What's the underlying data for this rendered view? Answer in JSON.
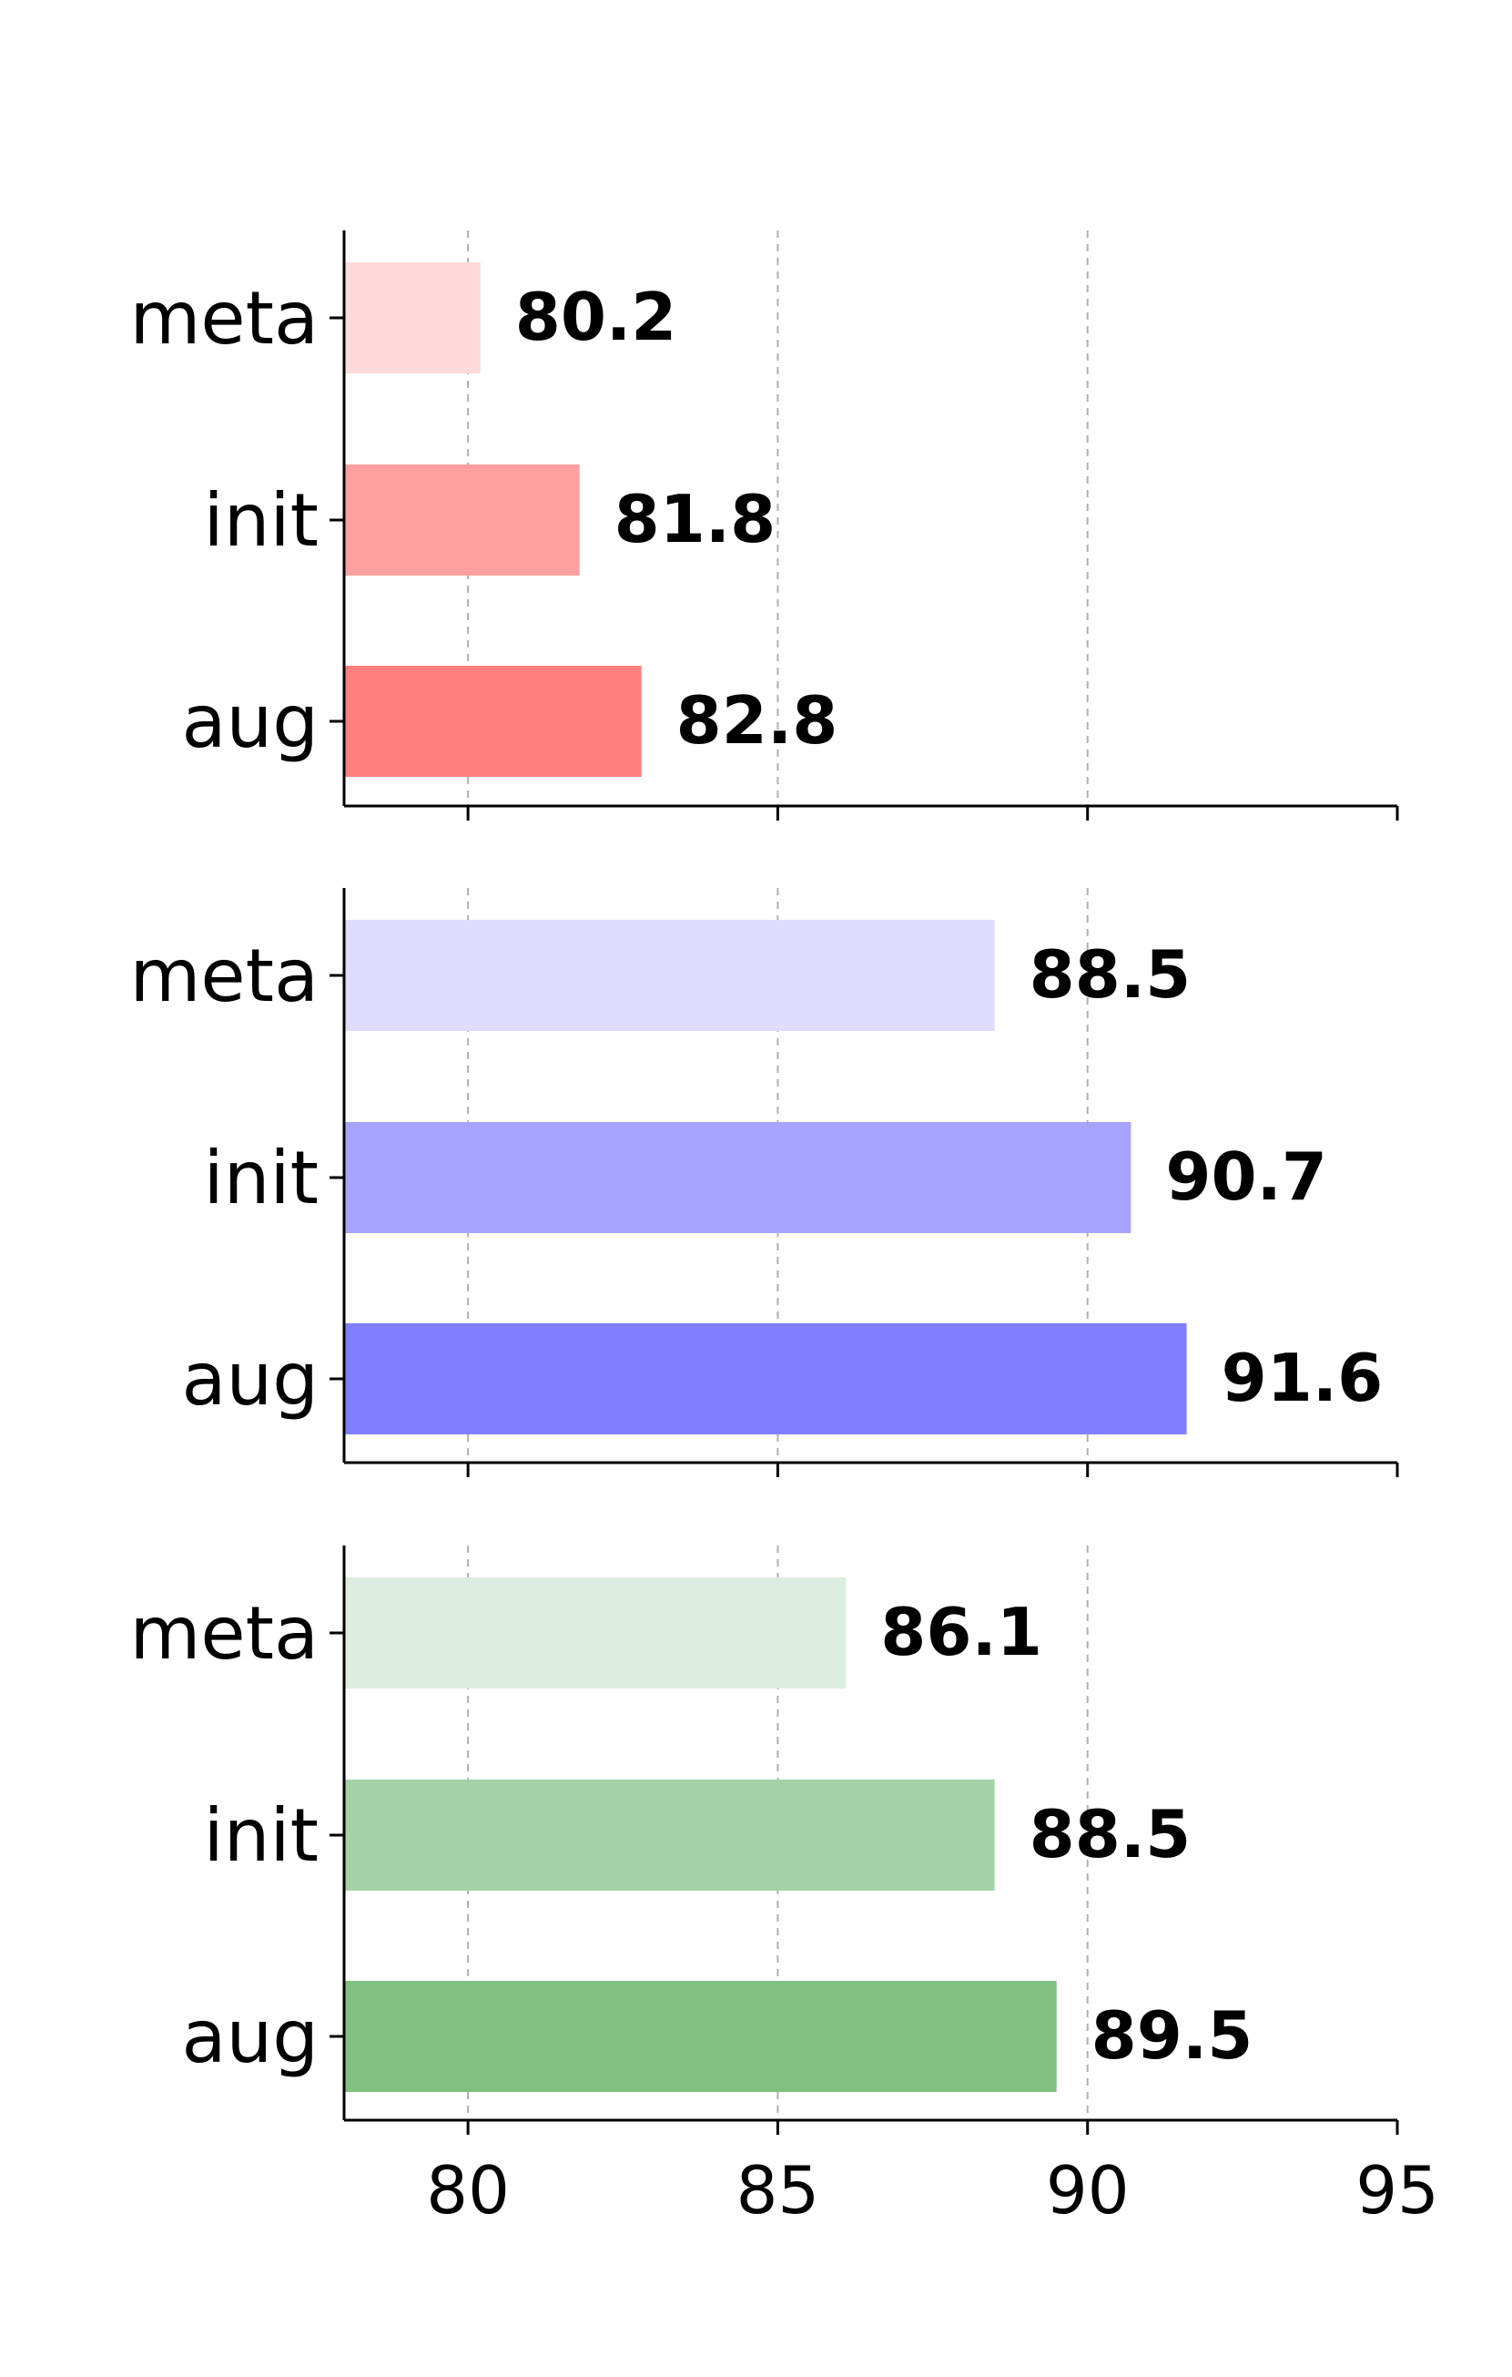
{
  "chart_data": [
    {
      "type": "bar",
      "orientation": "horizontal",
      "categories": [
        "meta",
        "init",
        "aug"
      ],
      "values": [
        80.2,
        81.8,
        82.8
      ],
      "colors": [
        "#ffdada",
        "#ff9f9f",
        "#ff7f7f"
      ],
      "xlim": [
        78,
        95
      ],
      "grid": true
    },
    {
      "type": "bar",
      "orientation": "horizontal",
      "categories": [
        "meta",
        "init",
        "aug"
      ],
      "values": [
        88.5,
        90.7,
        91.6
      ],
      "colors": [
        "#dfdcff",
        "#a6a4ff",
        "#8080ff"
      ],
      "xlim": [
        78,
        95
      ],
      "grid": true
    },
    {
      "type": "bar",
      "orientation": "horizontal",
      "categories": [
        "meta",
        "init",
        "aug"
      ],
      "values": [
        86.1,
        88.5,
        89.5
      ],
      "colors": [
        "#ddeddf",
        "#a4d2a6",
        "#80c080"
      ],
      "xlim": [
        78,
        95
      ],
      "grid": true
    }
  ],
  "x_ticks": [
    "80",
    "85",
    "90",
    "95"
  ]
}
